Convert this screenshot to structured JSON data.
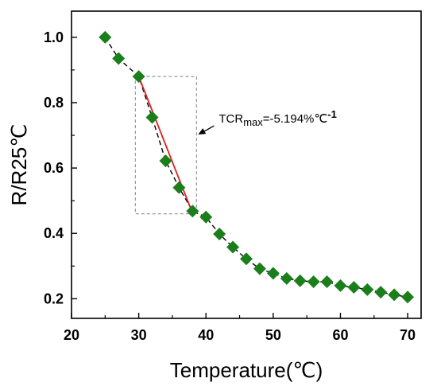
{
  "chart_data": {
    "type": "scatter",
    "xlabel": "Temperature(℃)",
    "ylabel": "R/R25℃",
    "xlim": [
      20,
      72
    ],
    "ylim": [
      0.14,
      1.08
    ],
    "x_ticks": [
      20,
      30,
      40,
      50,
      60,
      70
    ],
    "y_ticks": [
      0.2,
      0.4,
      0.6,
      0.8,
      1.0
    ],
    "x_tick_labels": [
      "20",
      "30",
      "40",
      "50",
      "60",
      "70"
    ],
    "y_tick_labels": [
      "0.2",
      "0.4",
      "0.6",
      "0.8",
      "1.0"
    ],
    "grid": false,
    "series": [
      {
        "marker": "diamond",
        "color": "#1a7f1a",
        "line_style": "dashed",
        "line_color": "#000000",
        "x": [
          25,
          27,
          30,
          32,
          34,
          36,
          38,
          40,
          42,
          44,
          46,
          48,
          50,
          52,
          54,
          56,
          58,
          60,
          62,
          64,
          66,
          68,
          70
        ],
        "y": [
          1.0,
          0.935,
          0.88,
          0.755,
          0.622,
          0.54,
          0.468,
          0.45,
          0.398,
          0.358,
          0.322,
          0.292,
          0.278,
          0.262,
          0.255,
          0.252,
          0.252,
          0.24,
          0.235,
          0.228,
          0.22,
          0.212,
          0.205
        ]
      }
    ],
    "fit_line": {
      "color": "#e02020",
      "x": [
        30,
        38
      ],
      "y": [
        0.88,
        0.462
      ]
    },
    "highlight_box": {
      "x": [
        29.5,
        38.6
      ],
      "y": [
        0.46,
        0.88
      ]
    },
    "annotation": {
      "text_main": "TCR",
      "text_sub": "max",
      "text_value": "=-5.194%℃",
      "text_sup": "-1",
      "anchor_x": 38.6,
      "anchor_y": 0.7
    }
  }
}
